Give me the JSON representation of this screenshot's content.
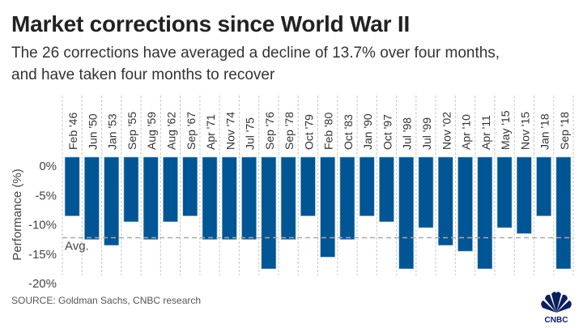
{
  "header": {
    "title": "Market corrections since World War II",
    "subtitle_line1": "The 26 corrections have averaged a decline of 13.7% over four months,",
    "subtitle_line2": "and have taken four months to recover"
  },
  "source": "SOURCE: Goldman Sachs, CNBC research",
  "logo": "CNBC",
  "colors": {
    "bar": "#005594",
    "avg_line": "#aaaaaa",
    "logo": "#0b1f5e"
  },
  "chart_data": {
    "type": "bar",
    "ylabel": "Performance (%)",
    "ylim": [
      -20,
      0
    ],
    "yticks": [
      "0%",
      "-5%",
      "-10%",
      "-15%",
      "-20%"
    ],
    "ytick_values": [
      0,
      -5,
      -10,
      -15,
      -20
    ],
    "grid": "vertical dashed",
    "categories": [
      "Feb '46",
      "Jun '50",
      "Jan '53",
      "Sep '55",
      "Aug '59",
      "Aug '62",
      "Sep '67",
      "Apr '71",
      "Nov '74",
      "Jul '75",
      "Sep '76",
      "Sep '78",
      "Oct '79",
      "Feb '80",
      "Oct '83",
      "Jan '90",
      "Oct '97",
      "Jul '98",
      "Jul '99",
      "Nov '02",
      "Apr '10",
      "Apr '11",
      "May '15",
      "Nov '15",
      "Jan '18",
      "Sep '18"
    ],
    "values": [
      -10,
      -14,
      -15,
      -11,
      -14,
      -11,
      -10,
      -14,
      -14,
      -14,
      -19,
      -14,
      -10,
      -17,
      -14,
      -10,
      -11,
      -19,
      -12,
      -15,
      -16,
      -19,
      -12,
      -13,
      -10,
      -19
    ],
    "average": {
      "label": "Avg.",
      "value": -13.7
    }
  }
}
